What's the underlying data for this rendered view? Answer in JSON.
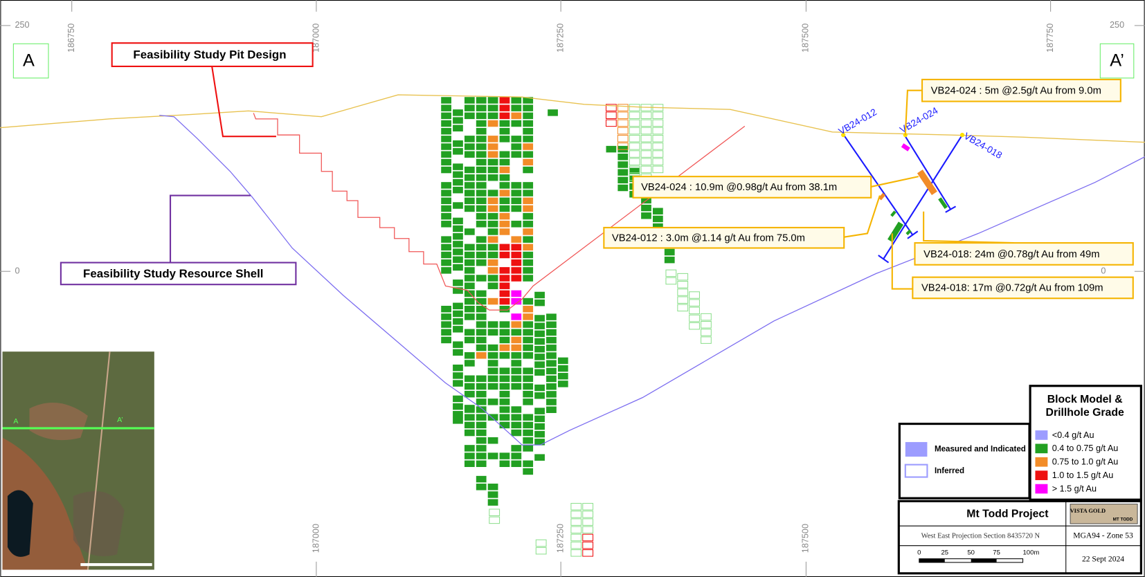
{
  "axes": {
    "top": [
      186750,
      187000,
      187250,
      187500,
      187750
    ],
    "bottom": [
      187000,
      187250,
      187500
    ],
    "left": [
      250,
      0
    ],
    "right": [
      250,
      0
    ]
  },
  "section_labels": [
    "A",
    "A’"
  ],
  "annotations": {
    "pit_design": "Feasibility Study Pit Design",
    "resource_shell": "Feasibility Study Resource Shell"
  },
  "drillholes": [
    "VB24-012",
    "VB24-024",
    "VB24-018"
  ],
  "intercepts": [
    "VB24-024 : 5m @2.5g/t Au from 9.0m",
    "VB24-024 : 10.9m @0.98g/t Au from 38.1m",
    "VB24-012 : 3.0m @1.14 g/t Au from 75.0m",
    "VB24-018: 24m @0.78g/t Au from 49m",
    "VB24-018: 17m @0.72g/t Au from 109m"
  ],
  "grade_legend": {
    "title": [
      "Block Model &",
      "Drillhole Grade"
    ],
    "items": [
      {
        "label": "<0.4 g/t Au",
        "color": "#9c9cff"
      },
      {
        "label": "0.4 to 0.75 g/t Au",
        "color": "#22a022"
      },
      {
        "label": "0.75 to 1.0 g/t Au",
        "color": "#f28c28"
      },
      {
        "label": "1.0 to 1.5 g/t Au",
        "color": "#ee1111"
      },
      {
        "label": "> 1.5 g/t Au",
        "color": "#ff00ff"
      }
    ]
  },
  "resource_legend": {
    "items": [
      "Measured and Indicated",
      "Inferred"
    ]
  },
  "title_block": {
    "project": "Mt Todd Project",
    "logo": [
      "VISTA GOLD",
      "MT TODD"
    ],
    "section": "West East Projection Section 8435720 N",
    "grid": "MGA94 - Zone 53",
    "scale_labels": [
      0,
      25,
      50,
      75,
      "100m"
    ],
    "date": "22 Sept 2024"
  }
}
